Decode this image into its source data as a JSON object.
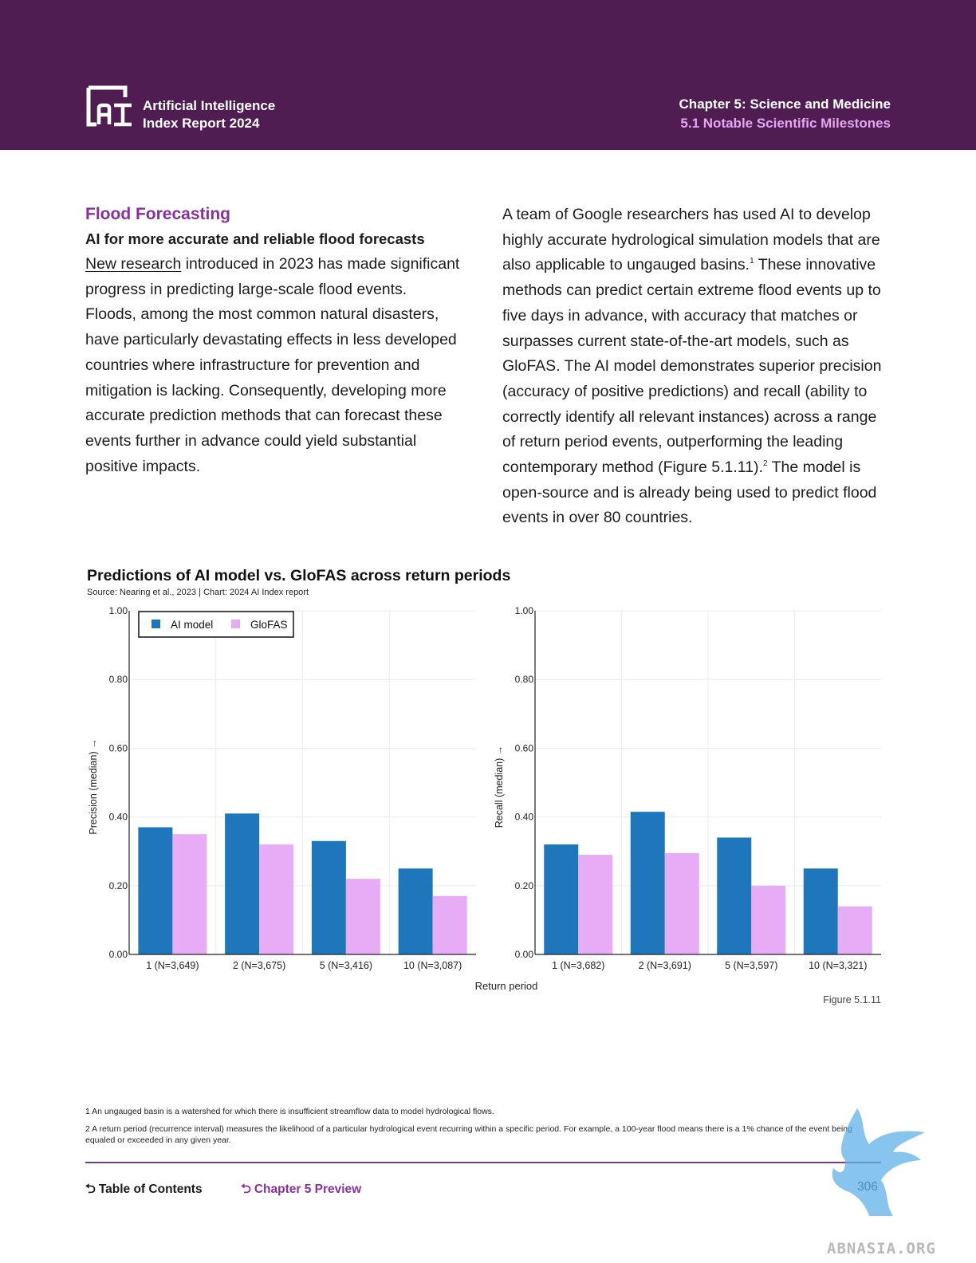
{
  "header": {
    "brand_line1": "Artificial Intelligence",
    "brand_line2": "Index Report 2024",
    "chapter": "Chapter 5: Science and Medicine",
    "section": "5.1 Notable Scientific Milestones",
    "background_color": "#4f1d52"
  },
  "article": {
    "title": "Flood Forecasting",
    "subtitle": "AI for more accurate and reliable flood forecasts",
    "left_link": "New research",
    "left_text": " introduced in 2023 has made significant progress in predicting large-scale flood events. Floods, among the most common natural disasters, have particularly devastating effects in less developed countries where infrastructure for prevention and mitigation is lacking. Consequently, developing more accurate prediction methods that can forecast these events further in advance could yield substantial positive impacts.",
    "right_p1": "A team of Google researchers has used AI to develop highly accurate hydrological simulation models that are also applicable to ungauged basins.",
    "sup1": "1",
    "right_p2": " These innovative methods can predict certain extreme flood events up to five days in advance, with accuracy that matches or surpasses current state-of-the-art models, such as GloFAS. The AI model demonstrates superior precision (accuracy of positive predictions) and recall (ability to correctly identify all relevant instances) across a range of return period events, outperforming the leading contemporary method (Figure 5.1.11).",
    "sup2": "2",
    "right_p3": " The model is open-source and is already being used to predict flood events in over 80 countries."
  },
  "figure": {
    "title": "Predictions of AI model vs. GloFAS across return periods",
    "source": "Source: Nearing et al., 2023 | Chart: 2024 AI Index report",
    "number": "Figure 5.1.11",
    "shared_xlabel": "Return period"
  },
  "chart_data": [
    {
      "type": "bar",
      "categories": [
        "1 (N=3,649)",
        "2 (N=3,675)",
        "5 (N=3,416)",
        "10 (N=3,087)"
      ],
      "series": [
        {
          "name": "AI model",
          "values": [
            0.37,
            0.41,
            0.33,
            0.25
          ],
          "color": "#1f77bb"
        },
        {
          "name": "GloFAS",
          "values": [
            0.35,
            0.32,
            0.22,
            0.17
          ],
          "color": "#e8acf7"
        }
      ],
      "ylabel": "Precision (median) →",
      "ylim": [
        0,
        1
      ],
      "yticks": [
        "0.00",
        "0.20",
        "0.40",
        "0.60",
        "0.80",
        "1.00"
      ],
      "legend": "top-left",
      "grid": true
    },
    {
      "type": "bar",
      "categories": [
        "1 (N=3,682)",
        "2 (N=3,691)",
        "5 (N=3,597)",
        "10 (N=3,321)"
      ],
      "series": [
        {
          "name": "AI model",
          "values": [
            0.32,
            0.415,
            0.34,
            0.25
          ],
          "color": "#1f77bb"
        },
        {
          "name": "GloFAS",
          "values": [
            0.29,
            0.295,
            0.2,
            0.14
          ],
          "color": "#e8acf7"
        }
      ],
      "ylabel": "Recall (median) →",
      "ylim": [
        0,
        1
      ],
      "yticks": [
        "0.00",
        "0.20",
        "0.40",
        "0.60",
        "0.80",
        "1.00"
      ],
      "grid": true
    }
  ],
  "footnotes": {
    "fn1": "1 An ungauged basin is a watershed for which there is insufficient streamflow data to model hydrological flows.",
    "fn2": "2 A return period (recurrence interval) measures the likelihood of a particular hydrological event recurring within a specific period. For example, a 100-year flood means there is a 1% chance of the event being equaled or exceeded in any given year."
  },
  "footer": {
    "toc_label": "Table of Contents",
    "preview_label": "Chapter 5 Preview",
    "page_number": "306",
    "back_icon": "return-arrow-icon"
  },
  "watermark": {
    "text": "ABNASIA.ORG"
  }
}
